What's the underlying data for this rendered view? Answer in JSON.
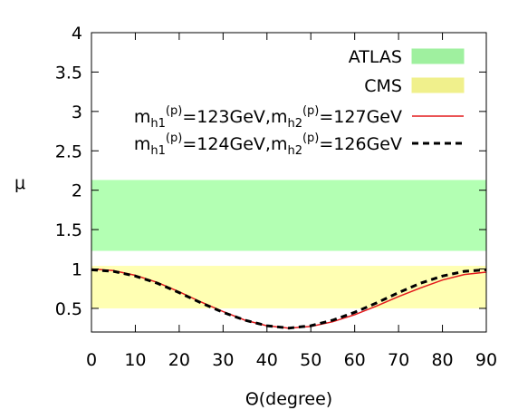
{
  "chart_data": {
    "type": "line",
    "xlabel": "Θ(degree)",
    "ylabel": "μ",
    "xlim": [
      0,
      90
    ],
    "ylim": [
      0.2,
      4
    ],
    "xticks": [
      0,
      10,
      20,
      30,
      40,
      50,
      60,
      70,
      80,
      90
    ],
    "yticks": [
      0.5,
      1,
      1.5,
      2,
      2.5,
      3,
      3.5,
      4
    ],
    "ytick_labels": [
      "0.5",
      "1",
      "1.5",
      "2",
      "2.5",
      "3",
      "3.5",
      "4"
    ],
    "xtick_labels": [
      "0",
      "10",
      "20",
      "30",
      "40",
      "50",
      "60",
      "70",
      "80",
      "90"
    ],
    "grid": false,
    "legend_position": "top-right",
    "bands": [
      {
        "name": "ATLAS",
        "y_range": [
          1.23,
          2.13
        ],
        "color": "#b3ffb3",
        "legend_color": "#9ff09f"
      },
      {
        "name": "CMS",
        "y_range": [
          0.5,
          1.04
        ],
        "color": "#ffffb3",
        "legend_color": "#f0f08c"
      }
    ],
    "series": [
      {
        "name": "m_h1^(p)=123GeV,m_h2^(p)=127GeV",
        "legend": {
          "m1": "m",
          "sub1": "h1",
          "sup1": "(p)",
          "mid": "=123GeV,",
          "m2": "m",
          "sub2": "h2",
          "sup2": "(p)",
          "end": "=127GeV"
        },
        "color": "#e41a1c",
        "style": "solid",
        "x": [
          0,
          5,
          10,
          15,
          20,
          25,
          30,
          35,
          40,
          45,
          50,
          55,
          60,
          65,
          70,
          75,
          80,
          85,
          90
        ],
        "y": [
          1.0,
          0.98,
          0.92,
          0.83,
          0.71,
          0.58,
          0.46,
          0.35,
          0.28,
          0.25,
          0.27,
          0.33,
          0.42,
          0.53,
          0.65,
          0.76,
          0.86,
          0.93,
          0.96
        ]
      },
      {
        "name": "m_h1^(p)=124GeV,m_h2^(p)=126GeV",
        "legend": {
          "m1": "m",
          "sub1": "h1",
          "sup1": "(p)",
          "mid": "=124GeV,",
          "m2": "m",
          "sub2": "h2",
          "sup2": "(p)",
          "end": "=126GeV"
        },
        "color": "#000000",
        "style": "dashed",
        "x": [
          0,
          5,
          10,
          15,
          20,
          25,
          30,
          35,
          40,
          45,
          50,
          55,
          60,
          65,
          70,
          75,
          80,
          85,
          90
        ],
        "y": [
          0.99,
          0.97,
          0.91,
          0.82,
          0.7,
          0.57,
          0.45,
          0.35,
          0.28,
          0.25,
          0.28,
          0.35,
          0.45,
          0.57,
          0.7,
          0.82,
          0.91,
          0.97,
          0.99
        ]
      }
    ]
  }
}
